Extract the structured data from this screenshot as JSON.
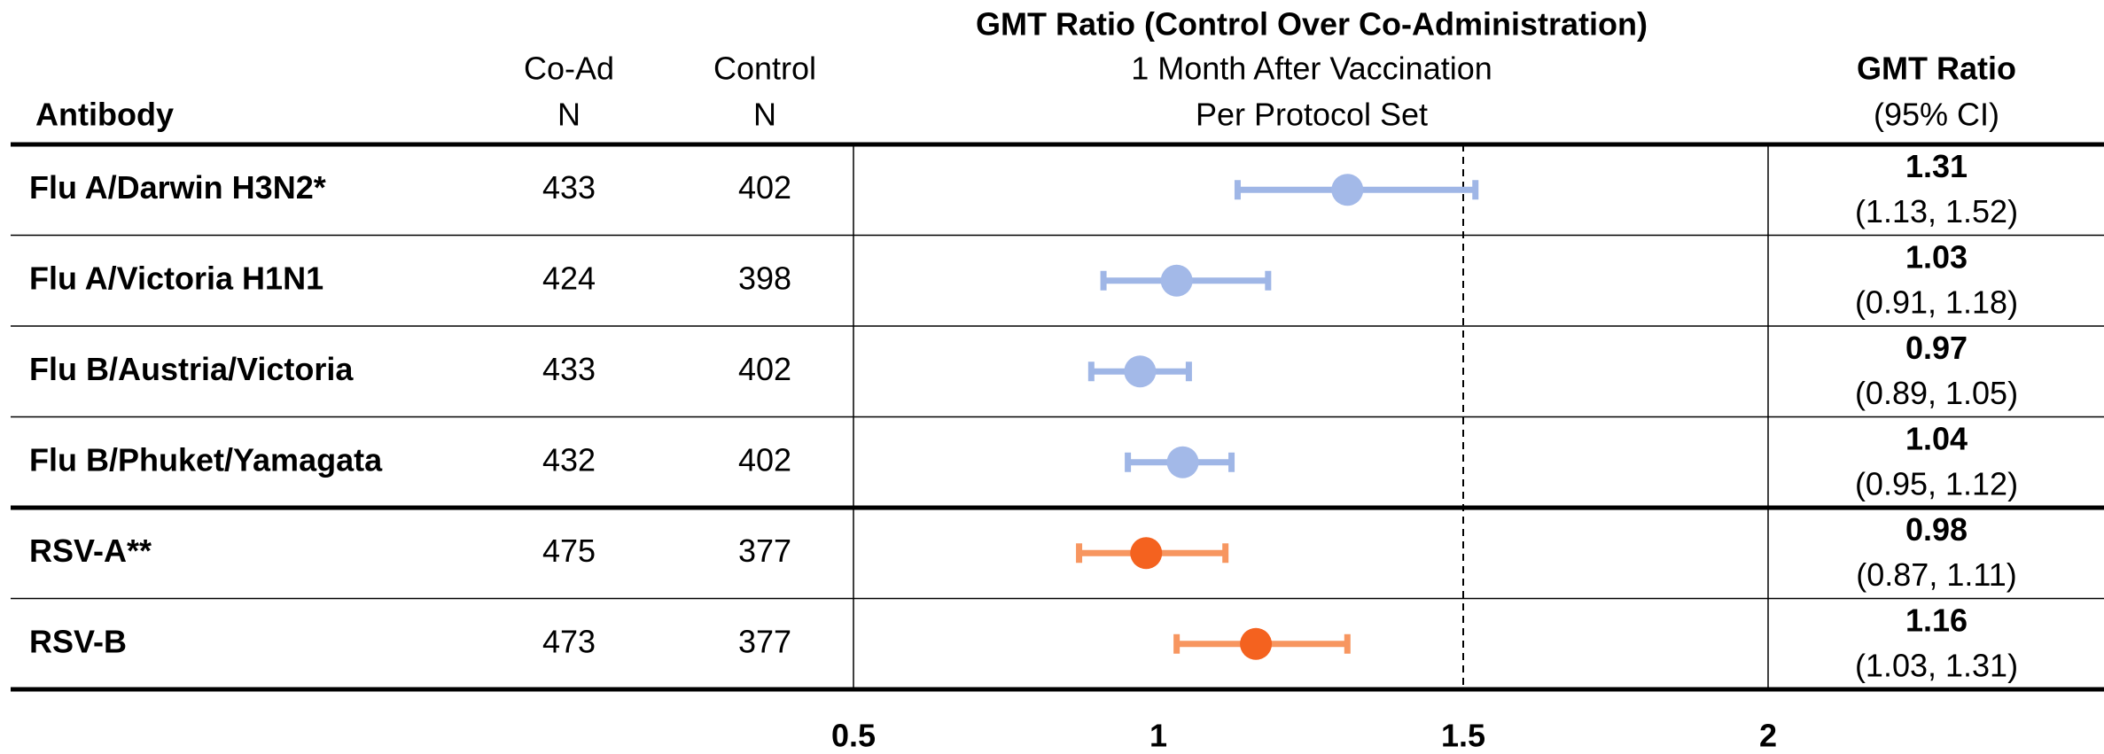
{
  "chart_data": {
    "type": "forest",
    "title": "GMT Ratio (Control Over Co-Administration)",
    "subtitle": [
      "1 Month After Vaccination",
      "Per Protocol Set"
    ],
    "column_headers": {
      "antibody": "Antibody",
      "co_ad": [
        "Co-Ad",
        "N"
      ],
      "control": [
        "Control",
        "N"
      ],
      "ratio": [
        "GMT Ratio",
        "(95% CI)"
      ]
    },
    "categories": [
      "Flu A/Darwin H3N2*",
      "Flu A/Victoria H1N1",
      "Flu B/Austria/Victoria",
      "Flu B/Phuket/Yamagata",
      "RSV-A**",
      "RSV-B"
    ],
    "co_ad_n": [
      433,
      424,
      433,
      432,
      475,
      473
    ],
    "control_n": [
      402,
      398,
      402,
      402,
      377,
      377
    ],
    "values": [
      1.31,
      1.03,
      0.97,
      1.04,
      0.98,
      1.16
    ],
    "lower": [
      1.13,
      0.91,
      0.89,
      0.95,
      0.87,
      1.03
    ],
    "upper": [
      1.52,
      1.18,
      1.05,
      1.12,
      1.11,
      1.31
    ],
    "ci_labels": [
      "(1.13, 1.52)",
      "(0.91, 1.18)",
      "(0.89, 1.05)",
      "(0.95, 1.12)",
      "(0.87, 1.11)",
      "(1.03, 1.31)"
    ],
    "point_colors": [
      "#a3b9e8",
      "#a3b9e8",
      "#a3b9e8",
      "#a3b9e8",
      "#f4621f",
      "#f4621f"
    ],
    "bar_colors": [
      "#9fb6e6",
      "#9fb6e6",
      "#9fb6e6",
      "#9fb6e6",
      "#f79660",
      "#f79660"
    ],
    "reference_line": 1.5,
    "xlim": [
      0.5,
      2
    ],
    "xticks": [
      0.5,
      1,
      1.5,
      2
    ]
  }
}
